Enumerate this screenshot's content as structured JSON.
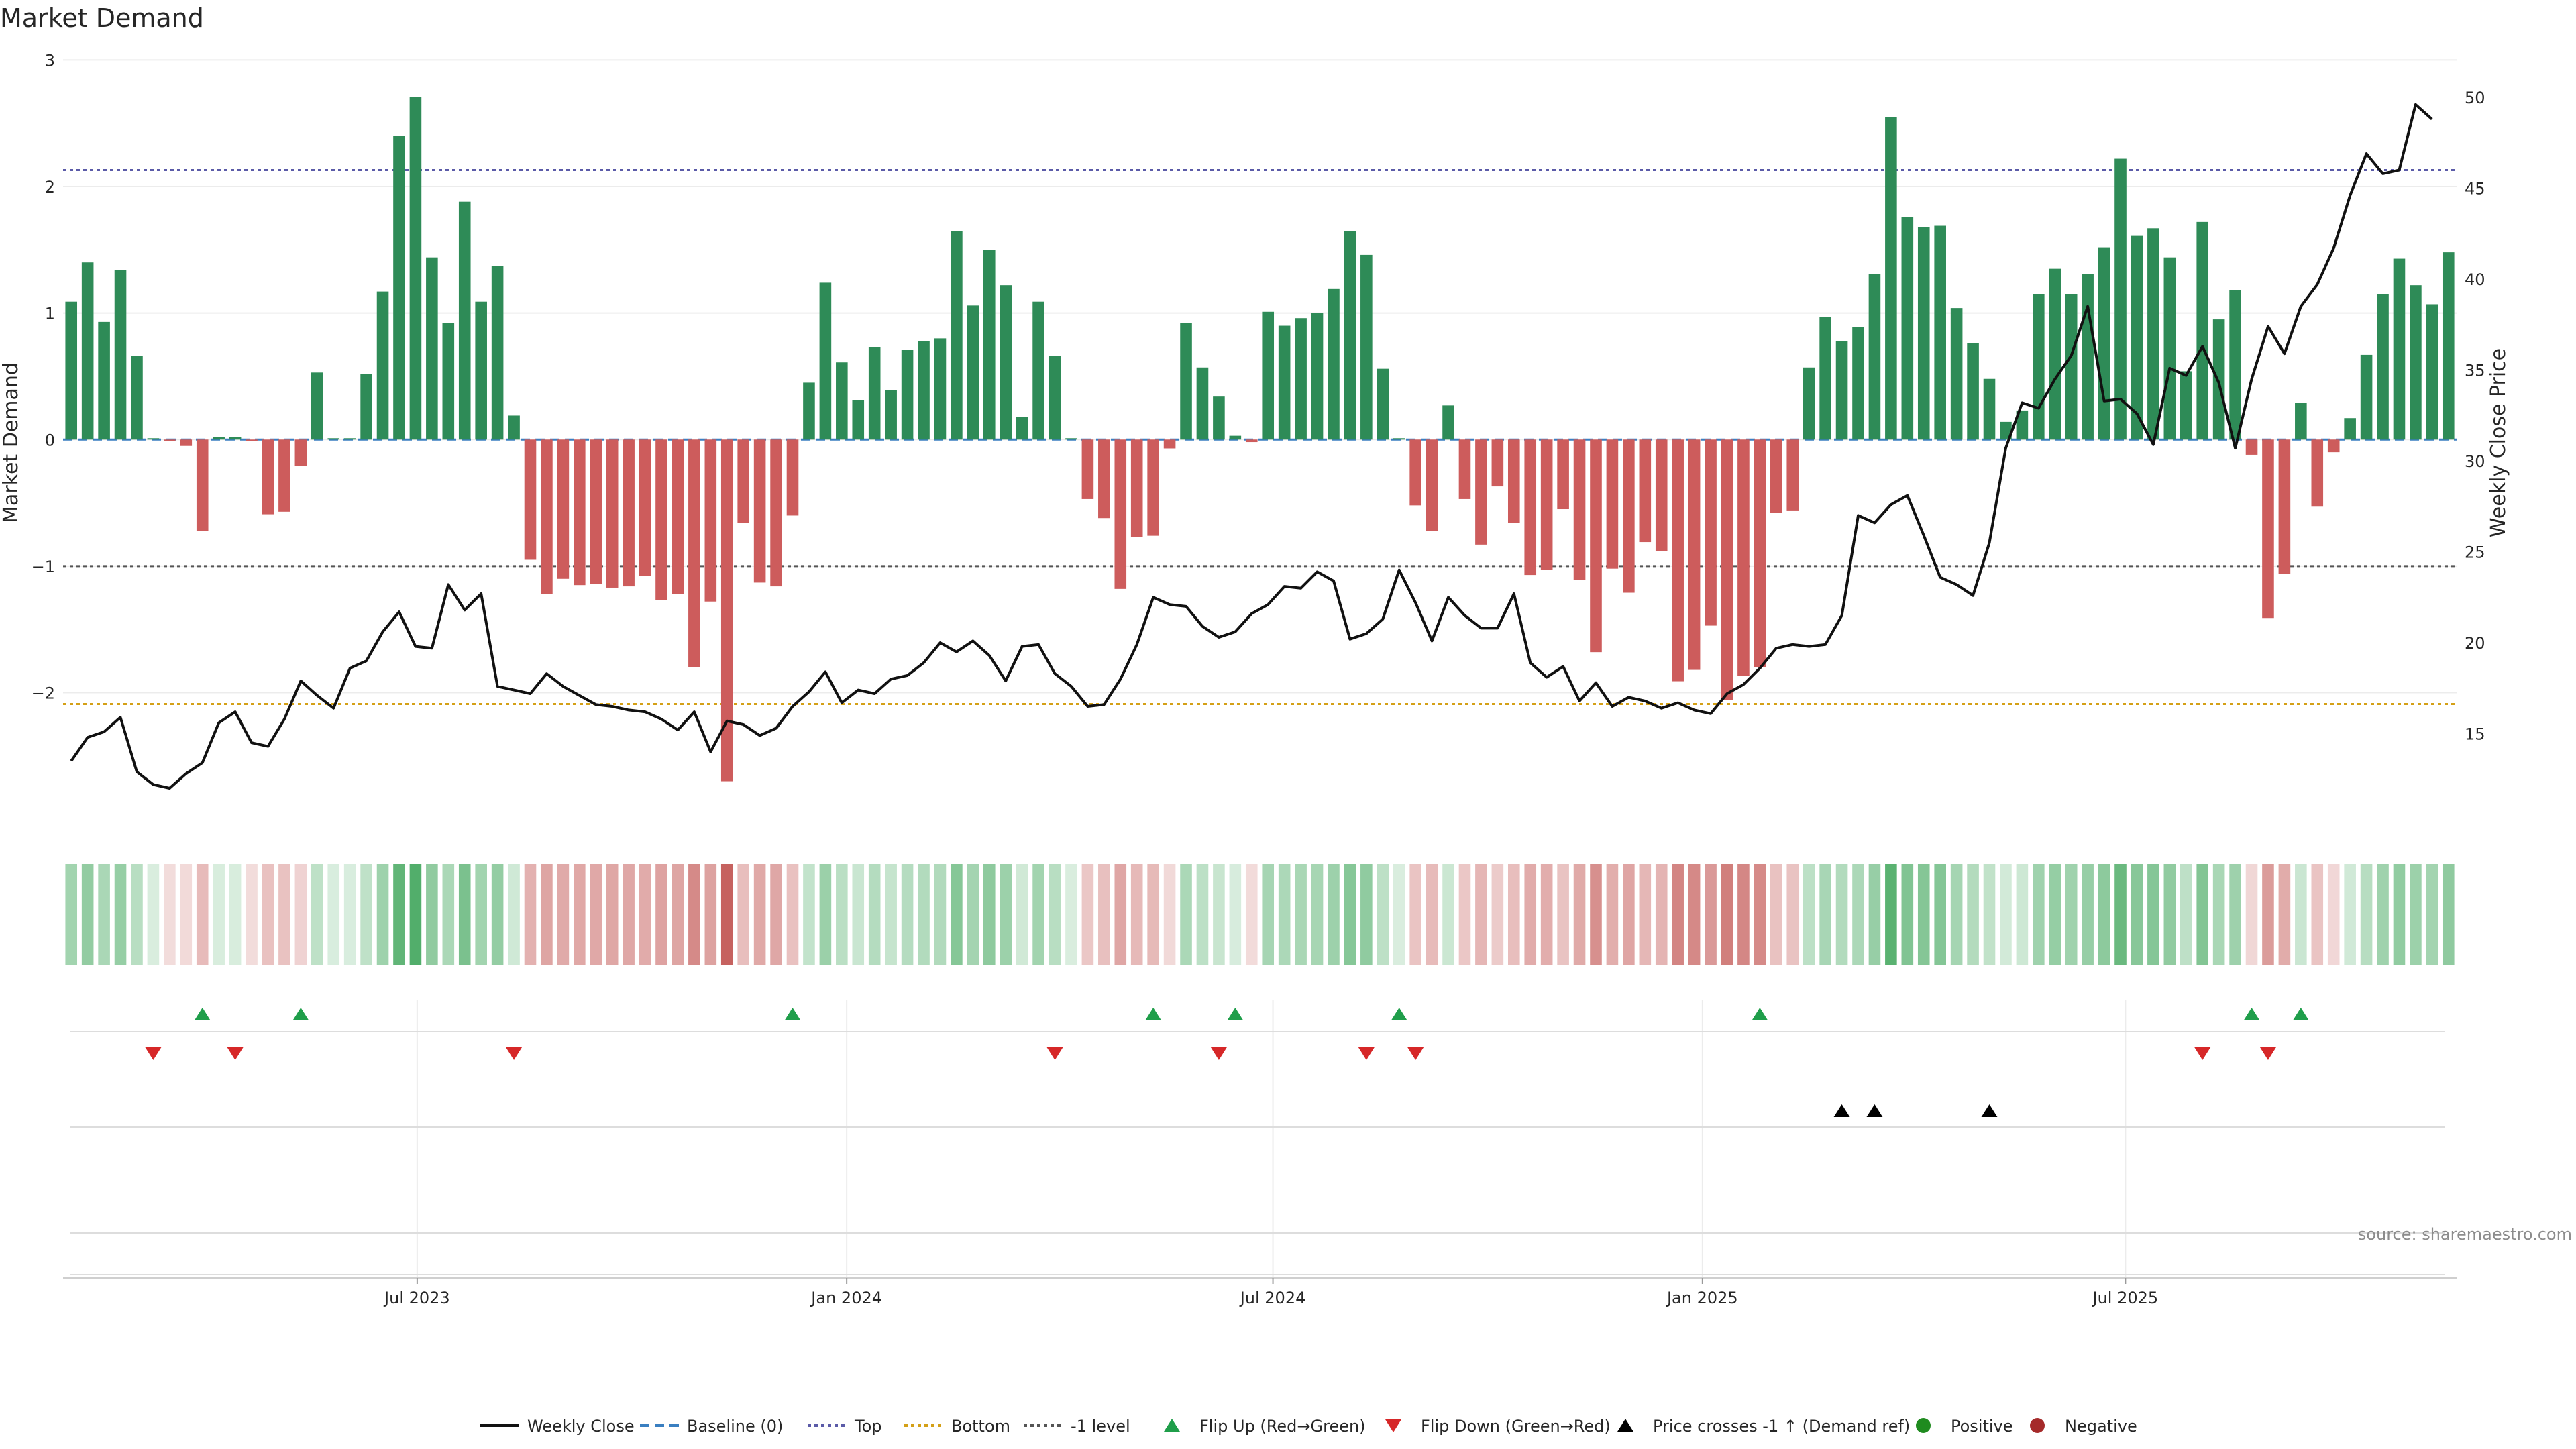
{
  "colors": {
    "positive": "#2e8b57",
    "negative": "#cd5c5c",
    "price_line": "#111111",
    "top_line": "#5b5ba8",
    "bottom_line": "#d4a017",
    "minus1_line": "#555555",
    "baseline": "#3a7fc1",
    "flip_up": "#1f9e4a",
    "flip_down": "#d62728",
    "cross_marker": "#000000",
    "positive_dot": "#1f8b1f",
    "negative_dot": "#a52a2a",
    "grid": "#ececec",
    "source": "#8c8c8c"
  },
  "chart_data": {
    "type": "bar",
    "title": "Market Demand",
    "ylabel": "Market Demand",
    "y2label": "Weekly Close Price",
    "ylim": [
      -3.1,
      3.05
    ],
    "y2lim": [
      9.6,
      52.4
    ],
    "yticks": [
      3,
      2,
      1,
      0,
      -1,
      -2
    ],
    "ytick_labels": [
      "3",
      "2",
      "1",
      "0",
      "−1",
      "−2"
    ],
    "y2ticks": [
      50,
      45,
      40,
      35,
      30,
      25,
      20,
      15
    ],
    "y2tick_labels": [
      "50",
      "45",
      "40",
      "35",
      "30",
      "25",
      "20",
      "15"
    ],
    "x_date_range": [
      "2023-03-13",
      "2025-10-20"
    ],
    "week_count": 144,
    "x_tick_labels": [
      "Jul 2023",
      "Jan 2024",
      "Jul 2024",
      "Jan 2025",
      "Jul 2025"
    ],
    "x_tick_positions": [
      21.6,
      47.8,
      73.8,
      100.0,
      125.8
    ],
    "reference_lines": {
      "top": 2.13,
      "bottom": -2.09,
      "minus_one": -1.0,
      "baseline": 0
    },
    "series": [
      {
        "name": "Market Demand",
        "values": [
          1.09,
          1.4,
          0.93,
          1.34,
          0.66,
          0,
          -0.01,
          -0.05,
          -0.72,
          0.02,
          0.02,
          -0.01,
          -0.59,
          -0.57,
          -0.21,
          0.53,
          0.01,
          0.01,
          0.52,
          1.17,
          2.4,
          2.71,
          1.44,
          0.92,
          1.88,
          1.09,
          1.37,
          0.19,
          -0.95,
          -1.22,
          -1.1,
          -1.15,
          -1.14,
          -1.17,
          -1.16,
          -1.08,
          -1.27,
          -1.22,
          -1.8,
          -1.28,
          -2.7,
          -0.66,
          -1.13,
          -1.16,
          -0.6,
          0.45,
          1.24,
          0.61,
          0.31,
          0.73,
          0.39,
          0.71,
          0.78,
          0.8,
          1.65,
          1.06,
          1.5,
          1.22,
          0.18,
          1.09,
          0.66,
          0,
          -0.47,
          -0.62,
          -1.18,
          -0.77,
          -0.76,
          -0.07,
          0.92,
          0.57,
          0.34,
          0.03,
          -0.02,
          1.01,
          0.9,
          0.96,
          1.0,
          1.19,
          1.65,
          1.46,
          0.56,
          0,
          -0.52,
          -0.72,
          0.27,
          -0.47,
          -0.83,
          -0.37,
          -0.66,
          -1.07,
          -1.03,
          -0.55,
          -1.11,
          -1.68,
          -1.02,
          -1.21,
          -0.81,
          -0.88,
          -1.91,
          -1.82,
          -1.47,
          -2.06,
          -1.87,
          -1.8,
          -0.58,
          -0.56,
          0.57,
          0.97,
          0.78,
          0.89,
          1.31,
          2.55,
          1.76,
          1.68,
          1.69,
          1.04,
          0.76,
          0.48,
          0.14,
          0.23,
          1.15,
          1.35,
          1.15,
          1.31,
          1.52,
          2.22,
          1.61,
          1.67,
          1.44,
          0.54,
          1.72,
          0.95,
          1.18,
          -0.12,
          -1.41,
          -1.06,
          0.29,
          -0.53,
          -0.1,
          0.17,
          0.67,
          1.15,
          1.43,
          1.22,
          1.07,
          1.48
        ]
      },
      {
        "name": "Weekly Close",
        "axis": "right",
        "values": [
          13.5,
          14.8,
          15.1,
          15.9,
          12.9,
          12.2,
          12.0,
          12.8,
          13.4,
          15.6,
          16.2,
          14.5,
          14.3,
          15.8,
          17.9,
          17.1,
          16.4,
          18.6,
          19.0,
          20.6,
          21.7,
          19.8,
          19.7,
          23.2,
          21.8,
          22.7,
          17.6,
          17.4,
          17.2,
          18.3,
          17.6,
          17.1,
          16.6,
          16.5,
          16.3,
          16.2,
          15.8,
          15.2,
          16.2,
          14.0,
          15.7,
          15.5,
          14.9,
          15.3,
          16.5,
          17.3,
          18.4,
          16.7,
          17.4,
          17.2,
          18.0,
          18.2,
          18.9,
          20.0,
          19.5,
          20.1,
          19.3,
          17.9,
          19.8,
          19.9,
          18.3,
          17.6,
          16.5,
          16.6,
          18.0,
          19.9,
          22.5,
          22.1,
          22.0,
          20.9,
          20.3,
          20.6,
          21.6,
          22.1,
          23.1,
          23.0,
          23.9,
          23.4,
          20.2,
          20.5,
          21.3,
          24.0,
          22.2,
          20.1,
          22.5,
          21.5,
          20.8,
          20.8,
          22.7,
          18.9,
          18.1,
          18.7,
          16.8,
          17.8,
          16.5,
          17.0,
          16.8,
          16.4,
          16.7,
          16.3,
          16.1,
          17.2,
          17.7,
          18.6,
          19.7,
          19.9,
          19.8,
          19.9,
          21.5,
          27.0,
          26.6,
          27.6,
          28.1,
          25.9,
          23.6,
          23.2,
          22.6,
          25.5,
          30.7,
          33.2,
          32.9,
          34.5,
          35.8,
          38.5,
          33.3,
          33.4,
          32.6,
          30.9,
          35.1,
          34.7,
          36.3,
          34.3,
          30.7,
          34.5,
          37.4,
          35.9,
          38.5,
          39.7,
          41.7,
          44.6,
          46.9,
          45.8,
          46.0,
          49.6,
          48.8
        ]
      }
    ],
    "flip_up_weeks": [
      8,
      14,
      44,
      66,
      71,
      81,
      103,
      133,
      136
    ],
    "flip_down_weeks": [
      5,
      10,
      27,
      60,
      70,
      79,
      82,
      130,
      134
    ],
    "price_cross_weeks": [
      108,
      110,
      117
    ],
    "source": "source: sharemaestro.com",
    "legend": [
      {
        "label": "Weekly Close",
        "kind": "line-solid",
        "color": "#111111"
      },
      {
        "label": "Baseline (0)",
        "kind": "line-dashed",
        "color": "#3a7fc1"
      },
      {
        "label": "Top",
        "kind": "line-dotted",
        "color": "#5b5ba8"
      },
      {
        "label": "Bottom",
        "kind": "line-dotted",
        "color": "#d4a017"
      },
      {
        "label": "-1 level",
        "kind": "line-dotted",
        "color": "#555555"
      },
      {
        "label": "Flip Up (Red→Green)",
        "kind": "tri-up",
        "color": "#1f9e4a"
      },
      {
        "label": "Flip Down (Green→Red)",
        "kind": "tri-down",
        "color": "#d62728"
      },
      {
        "label": "Price crosses -1 ↑ (Demand ref)",
        "kind": "tri-up",
        "color": "#000000"
      },
      {
        "label": "Positive",
        "kind": "dot",
        "color": "#1f8b1f"
      },
      {
        "label": "Negative",
        "kind": "dot",
        "color": "#a52a2a"
      }
    ]
  }
}
